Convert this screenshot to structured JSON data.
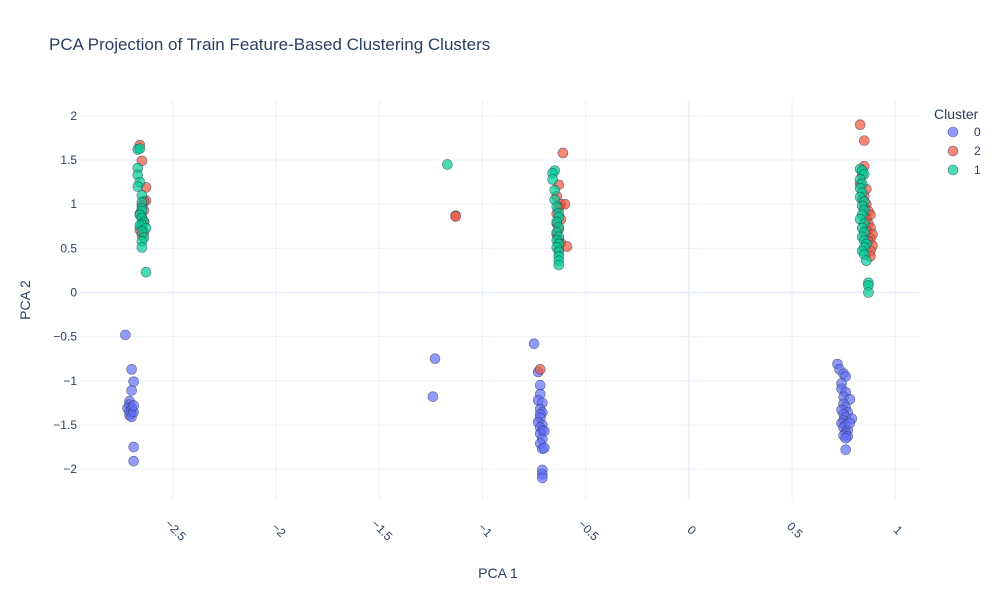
{
  "chart_data": {
    "type": "scatter",
    "title": "PCA Projection of Train Feature-Based Clustering Clusters",
    "xlabel": "PCA 1",
    "ylabel": "PCA 2",
    "xlim": [
      -2.95,
      1.12
    ],
    "ylim": [
      -2.35,
      2.18
    ],
    "xticks": [
      -2.5,
      -2,
      -1.5,
      -1,
      -0.5,
      0,
      0.5,
      1
    ],
    "xtick_labels": [
      "−2.5",
      "−2",
      "−1.5",
      "−1",
      "−0.5",
      "0",
      "0.5",
      "1"
    ],
    "yticks": [
      -2,
      -1.5,
      -1,
      -0.5,
      0,
      0.5,
      1,
      1.5,
      2
    ],
    "ytick_labels": [
      "−2",
      "−1.5",
      "−1",
      "−0.5",
      "0",
      "0.5",
      "1",
      "1.5",
      "2"
    ],
    "grid": true,
    "legend_title": "Cluster",
    "legend_position": "top-right",
    "series": [
      {
        "name": "0",
        "color": "#636efa",
        "points": [
          [
            -2.73,
            -0.48
          ],
          [
            -2.7,
            -0.87
          ],
          [
            -2.69,
            -1.01
          ],
          [
            -2.7,
            -1.11
          ],
          [
            -2.71,
            -1.23
          ],
          [
            -2.71,
            -1.27
          ],
          [
            -2.7,
            -1.3
          ],
          [
            -2.72,
            -1.31
          ],
          [
            -2.7,
            -1.33
          ],
          [
            -2.71,
            -1.35
          ],
          [
            -2.7,
            -1.37
          ],
          [
            -2.71,
            -1.39
          ],
          [
            -2.7,
            -1.41
          ],
          [
            -2.69,
            -1.35
          ],
          [
            -2.69,
            -1.28
          ],
          [
            -2.69,
            -1.75
          ],
          [
            -2.69,
            -1.91
          ],
          [
            -1.23,
            -0.75
          ],
          [
            -1.24,
            -1.18
          ],
          [
            -0.75,
            -0.58
          ],
          [
            -0.73,
            -0.9
          ],
          [
            -0.72,
            -1.05
          ],
          [
            -0.72,
            -1.15
          ],
          [
            -0.73,
            -1.22
          ],
          [
            -0.71,
            -1.25
          ],
          [
            -0.72,
            -1.32
          ],
          [
            -0.71,
            -1.36
          ],
          [
            -0.72,
            -1.38
          ],
          [
            -0.72,
            -1.42
          ],
          [
            -0.73,
            -1.47
          ],
          [
            -0.71,
            -1.5
          ],
          [
            -0.72,
            -1.53
          ],
          [
            -0.71,
            -1.56
          ],
          [
            -0.72,
            -1.6
          ],
          [
            -0.7,
            -1.57
          ],
          [
            -0.71,
            -1.66
          ],
          [
            -0.72,
            -1.71
          ],
          [
            -0.71,
            -1.77
          ],
          [
            -0.7,
            -1.76
          ],
          [
            -0.71,
            -2.01
          ],
          [
            -0.71,
            -2.06
          ],
          [
            -0.71,
            -2.1
          ],
          [
            0.72,
            -0.81
          ],
          [
            0.73,
            -0.87
          ],
          [
            0.75,
            -0.92
          ],
          [
            0.76,
            -0.95
          ],
          [
            0.74,
            -1.03
          ],
          [
            0.74,
            -1.09
          ],
          [
            0.76,
            -1.13
          ],
          [
            0.75,
            -1.18
          ],
          [
            0.78,
            -1.21
          ],
          [
            0.75,
            -1.26
          ],
          [
            0.76,
            -1.3
          ],
          [
            0.74,
            -1.33
          ],
          [
            0.77,
            -1.36
          ],
          [
            0.75,
            -1.38
          ],
          [
            0.76,
            -1.41
          ],
          [
            0.75,
            -1.45
          ],
          [
            0.74,
            -1.48
          ],
          [
            0.76,
            -1.5
          ],
          [
            0.75,
            -1.53
          ],
          [
            0.77,
            -1.56
          ],
          [
            0.76,
            -1.59
          ],
          [
            0.75,
            -1.62
          ],
          [
            0.77,
            -1.63
          ],
          [
            0.76,
            -1.65
          ],
          [
            0.79,
            -1.43
          ],
          [
            0.78,
            -1.48
          ],
          [
            0.76,
            -1.78
          ]
        ]
      },
      {
        "name": "2",
        "color": "#ef553b",
        "points": [
          [
            -2.66,
            1.67
          ],
          [
            -2.65,
            1.49
          ],
          [
            -2.63,
            1.19
          ],
          [
            -2.63,
            1.04
          ],
          [
            -2.64,
            1.03
          ],
          [
            -2.65,
            0.98
          ],
          [
            -2.64,
            0.93
          ],
          [
            -2.66,
            0.89
          ],
          [
            -2.65,
            0.85
          ],
          [
            -2.64,
            0.8
          ],
          [
            -2.65,
            0.76
          ],
          [
            -2.66,
            0.71
          ],
          [
            -2.64,
            0.68
          ],
          [
            -2.65,
            0.65
          ],
          [
            -1.13,
            0.87
          ],
          [
            -1.13,
            0.86
          ],
          [
            -0.61,
            1.58
          ],
          [
            -0.63,
            1.22
          ],
          [
            -0.64,
            1.09
          ],
          [
            -0.62,
            1.0
          ],
          [
            -0.6,
            1.0
          ],
          [
            -0.63,
            0.96
          ],
          [
            -0.64,
            0.89
          ],
          [
            -0.62,
            0.83
          ],
          [
            -0.64,
            0.78
          ],
          [
            -0.63,
            0.72
          ],
          [
            -0.64,
            0.66
          ],
          [
            -0.63,
            0.6
          ],
          [
            -0.62,
            0.56
          ],
          [
            -0.59,
            0.52
          ],
          [
            -0.63,
            0.49
          ],
          [
            -0.72,
            -0.87
          ],
          [
            0.83,
            1.9
          ],
          [
            0.85,
            1.72
          ],
          [
            0.85,
            1.43
          ],
          [
            0.84,
            1.33
          ],
          [
            0.83,
            1.23
          ],
          [
            0.86,
            1.17
          ],
          [
            0.85,
            1.09
          ],
          [
            0.84,
            1.05
          ],
          [
            0.86,
            1.0
          ],
          [
            0.85,
            0.96
          ],
          [
            0.87,
            0.92
          ],
          [
            0.88,
            0.88
          ],
          [
            0.86,
            0.83
          ],
          [
            0.87,
            0.78
          ],
          [
            0.88,
            0.73
          ],
          [
            0.86,
            0.7
          ],
          [
            0.89,
            0.66
          ],
          [
            0.88,
            0.61
          ],
          [
            0.87,
            0.58
          ],
          [
            0.89,
            0.53
          ],
          [
            0.88,
            0.47
          ],
          [
            0.88,
            0.41
          ]
        ]
      },
      {
        "name": "1",
        "color": "#00cc96",
        "points": [
          [
            -2.67,
            1.62
          ],
          [
            -2.66,
            1.63
          ],
          [
            -2.67,
            1.41
          ],
          [
            -2.67,
            1.33
          ],
          [
            -2.66,
            1.25
          ],
          [
            -2.67,
            1.2
          ],
          [
            -2.65,
            1.1
          ],
          [
            -2.65,
            1.02
          ],
          [
            -2.65,
            0.95
          ],
          [
            -2.65,
            0.92
          ],
          [
            -2.66,
            0.88
          ],
          [
            -2.65,
            0.84
          ],
          [
            -2.64,
            0.8
          ],
          [
            -2.65,
            0.77
          ],
          [
            -2.66,
            0.76
          ],
          [
            -2.63,
            0.73
          ],
          [
            -2.65,
            0.69
          ],
          [
            -2.64,
            0.62
          ],
          [
            -2.65,
            0.58
          ],
          [
            -2.65,
            0.51
          ],
          [
            -2.63,
            0.23
          ],
          [
            -1.17,
            1.45
          ],
          [
            -0.65,
            1.38
          ],
          [
            -0.66,
            1.35
          ],
          [
            -0.66,
            1.28
          ],
          [
            -0.65,
            1.16
          ],
          [
            -0.65,
            1.05
          ],
          [
            -0.64,
            0.97
          ],
          [
            -0.63,
            0.9
          ],
          [
            -0.63,
            0.85
          ],
          [
            -0.64,
            0.8
          ],
          [
            -0.63,
            0.74
          ],
          [
            -0.64,
            0.68
          ],
          [
            -0.63,
            0.63
          ],
          [
            -0.64,
            0.59
          ],
          [
            -0.63,
            0.55
          ],
          [
            -0.64,
            0.51
          ],
          [
            -0.63,
            0.46
          ],
          [
            -0.63,
            0.41
          ],
          [
            -0.63,
            0.36
          ],
          [
            -0.63,
            0.31
          ],
          [
            0.83,
            1.4
          ],
          [
            0.84,
            1.38
          ],
          [
            0.85,
            1.34
          ],
          [
            0.83,
            1.28
          ],
          [
            0.84,
            1.23
          ],
          [
            0.83,
            1.18
          ],
          [
            0.84,
            1.13
          ],
          [
            0.83,
            1.08
          ],
          [
            0.85,
            1.03
          ],
          [
            0.84,
            0.98
          ],
          [
            0.85,
            0.93
          ],
          [
            0.84,
            0.88
          ],
          [
            0.83,
            0.83
          ],
          [
            0.85,
            0.78
          ],
          [
            0.84,
            0.73
          ],
          [
            0.85,
            0.68
          ],
          [
            0.84,
            0.63
          ],
          [
            0.85,
            0.59
          ],
          [
            0.86,
            0.55
          ],
          [
            0.85,
            0.51
          ],
          [
            0.84,
            0.47
          ],
          [
            0.85,
            0.43
          ],
          [
            0.86,
            0.36
          ],
          [
            0.87,
            0.11
          ],
          [
            0.87,
            0.08
          ],
          [
            0.87,
            0.0
          ]
        ]
      }
    ]
  }
}
